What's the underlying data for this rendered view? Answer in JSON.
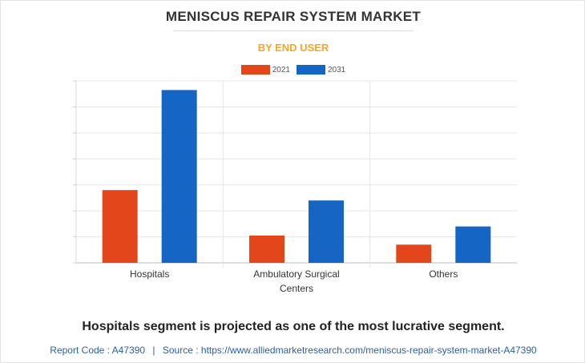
{
  "title": "MENISCUS REPAIR SYSTEM MARKET",
  "subtitle": "BY END USER",
  "colors": {
    "accent": "#f5a623",
    "series_2021": "#e2461a",
    "series_2031": "#1565c4",
    "footer": "#2a5fa6",
    "grid": "#e5e5e5"
  },
  "chart_data": {
    "type": "bar",
    "categories": [
      [
        "Hospitals"
      ],
      [
        "Ambulatory Surgical",
        "Centers"
      ],
      [
        "Others"
      ]
    ],
    "series": [
      {
        "name": "2021",
        "values": [
          28,
          10.5,
          7
        ]
      },
      {
        "name": "2031",
        "values": [
          66.5,
          24,
          14
        ]
      }
    ],
    "ylim": [
      0,
      70
    ],
    "grid": true,
    "legend": "top-center"
  },
  "caption": "Hospitals segment is projected as one of the most lucrative segment.",
  "footer": {
    "report_code": "Report Code : A47390",
    "separator": "|",
    "source": "Source : https://www.alliedmarketresearch.com/meniscus-repair-system-market-A47390"
  }
}
